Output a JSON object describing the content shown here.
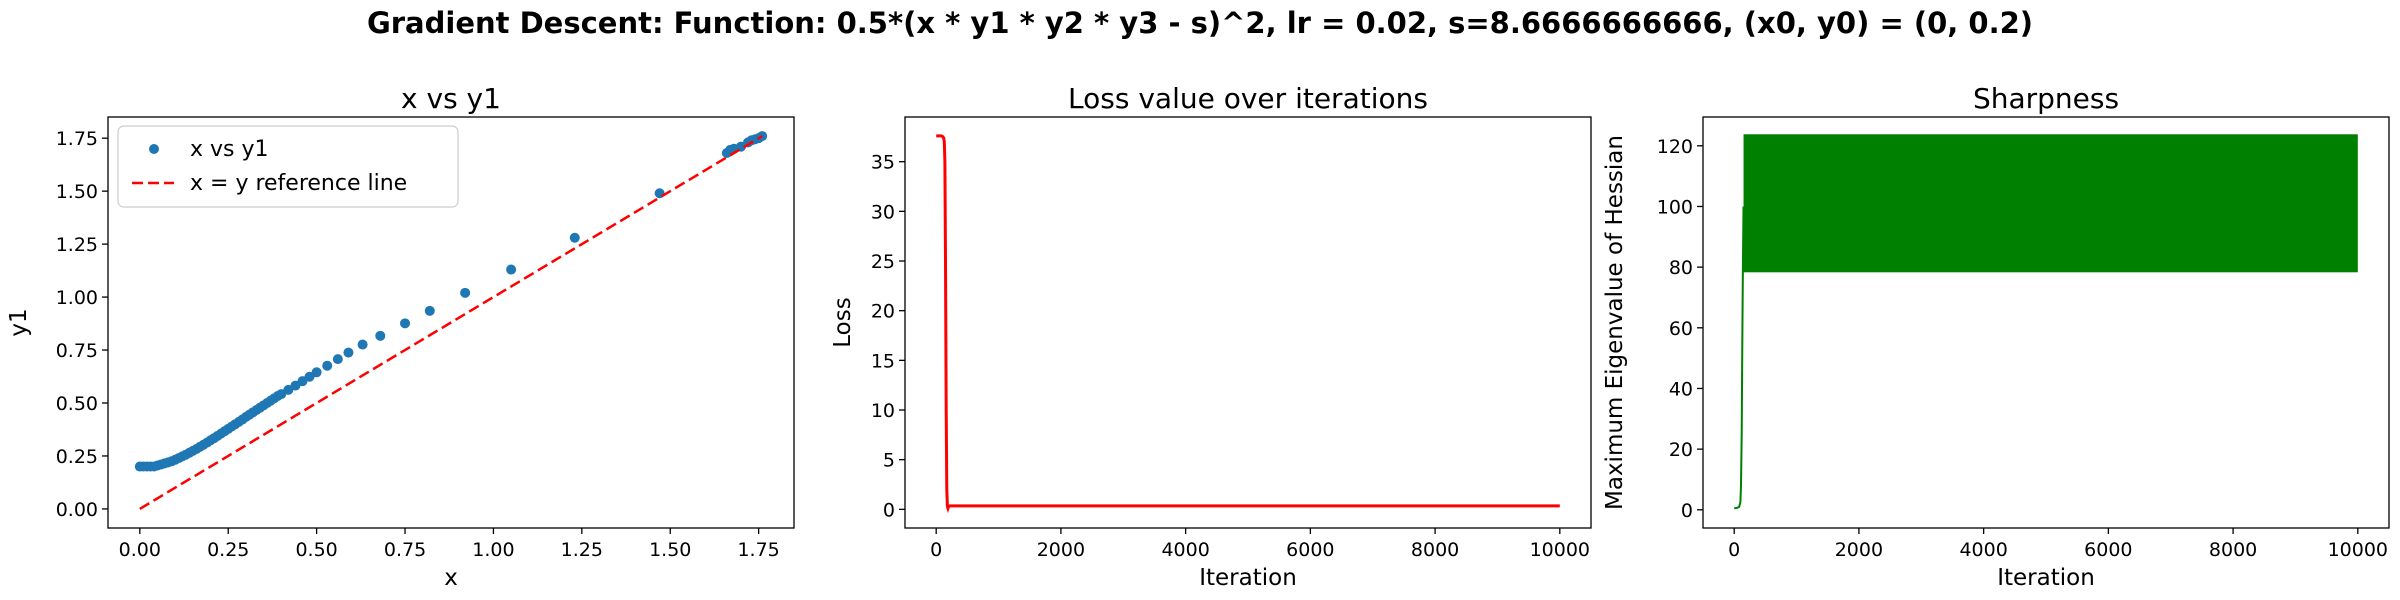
{
  "suptitle": "Gradient Descent: Function: 0.5*(x * y1 * y2 * y3 - s)^2, lr = 0.02, s=8.6666666666, (x0, y0) = (0, 0.2)",
  "colors": {
    "scatter": "#1f77b4",
    "reference": "#ff0000",
    "loss": "#ff0000",
    "sharpness": "#008000",
    "axes": "#000000"
  },
  "chart_data": [
    {
      "type": "scatter",
      "title": "x vs y1",
      "xlabel": "x",
      "ylabel": "y1",
      "xlim": [
        -0.09,
        1.85
      ],
      "ylim": [
        -0.09,
        1.85
      ],
      "xticks": [
        0.0,
        0.25,
        0.5,
        0.75,
        1.0,
        1.25,
        1.5,
        1.75
      ],
      "xtick_labels": [
        "0.00",
        "0.25",
        "0.50",
        "0.75",
        "1.00",
        "1.25",
        "1.50",
        "1.75"
      ],
      "yticks": [
        0.0,
        0.25,
        0.5,
        0.75,
        1.0,
        1.25,
        1.5,
        1.75
      ],
      "ytick_labels": [
        "0.00",
        "0.25",
        "0.50",
        "0.75",
        "1.00",
        "1.25",
        "1.50",
        "1.75"
      ],
      "legend": {
        "position": "top-left",
        "entries": [
          "x vs y1",
          "x = y reference line"
        ]
      },
      "series": [
        {
          "name": "x vs y1",
          "kind": "scatter",
          "x": [
            0.0,
            0.01,
            0.02,
            0.03,
            0.04,
            0.05,
            0.06,
            0.07,
            0.08,
            0.09,
            0.1,
            0.11,
            0.12,
            0.13,
            0.14,
            0.15,
            0.16,
            0.17,
            0.18,
            0.19,
            0.2,
            0.21,
            0.22,
            0.23,
            0.24,
            0.25,
            0.26,
            0.27,
            0.28,
            0.29,
            0.3,
            0.31,
            0.32,
            0.33,
            0.34,
            0.35,
            0.36,
            0.37,
            0.38,
            0.39,
            0.4,
            0.42,
            0.44,
            0.46,
            0.48,
            0.5,
            0.53,
            0.56,
            0.59,
            0.63,
            0.68,
            0.75,
            0.82,
            0.92,
            1.05,
            1.23,
            1.47,
            1.66,
            1.67,
            1.68,
            1.7,
            1.72,
            1.73,
            1.74,
            1.75,
            1.76
          ],
          "y": [
            0.2,
            0.2,
            0.2,
            0.2,
            0.2,
            0.205,
            0.21,
            0.215,
            0.22,
            0.225,
            0.232,
            0.24,
            0.248,
            0.256,
            0.265,
            0.274,
            0.283,
            0.293,
            0.303,
            0.313,
            0.324,
            0.334,
            0.345,
            0.356,
            0.367,
            0.378,
            0.389,
            0.4,
            0.411,
            0.422,
            0.434,
            0.445,
            0.456,
            0.467,
            0.478,
            0.489,
            0.5,
            0.511,
            0.522,
            0.533,
            0.542,
            0.562,
            0.582,
            0.603,
            0.624,
            0.645,
            0.676,
            0.707,
            0.738,
            0.776,
            0.817,
            0.876,
            0.935,
            1.02,
            1.13,
            1.28,
            1.49,
            1.68,
            1.695,
            1.7,
            1.71,
            1.73,
            1.74,
            1.745,
            1.75,
            1.76
          ]
        },
        {
          "name": "x = y reference line",
          "kind": "line",
          "style": "dashed",
          "x": [
            0.0,
            1.76
          ],
          "y": [
            0.0,
            1.76
          ]
        }
      ]
    },
    {
      "type": "line",
      "title": "Loss value over iterations",
      "xlabel": "Iteration",
      "ylabel": "Loss",
      "xlim": [
        -500,
        10500
      ],
      "ylim": [
        -1.88,
        39.5
      ],
      "xticks": [
        0,
        2000,
        4000,
        6000,
        8000,
        10000
      ],
      "xtick_labels": [
        "0",
        "2000",
        "4000",
        "6000",
        "8000",
        "10000"
      ],
      "yticks": [
        0,
        5,
        10,
        15,
        20,
        25,
        30,
        35
      ],
      "ytick_labels": [
        "0",
        "5",
        "10",
        "15",
        "20",
        "25",
        "30",
        "35"
      ],
      "series": [
        {
          "kind": "line",
          "x": [
            0,
            20,
            40,
            60,
            80,
            100,
            120,
            130,
            140,
            150,
            160,
            170,
            180,
            190,
            200,
            220,
            260,
            500,
            2000,
            4000,
            6000,
            8000,
            10000
          ],
          "y": [
            37.6,
            37.6,
            37.6,
            37.6,
            37.6,
            37.55,
            37.4,
            37.0,
            35.0,
            25.0,
            10.0,
            2.0,
            0.3,
            0.1,
            0.3,
            0.35,
            0.35,
            0.35,
            0.35,
            0.35,
            0.35,
            0.35,
            0.35
          ]
        }
      ]
    },
    {
      "type": "line",
      "title": "Sharpness",
      "xlabel": "Iteration",
      "ylabel": "Maximum Eigenvalue of Hessian",
      "xlim": [
        -500,
        10500
      ],
      "ylim": [
        -6.0,
        129.5
      ],
      "xticks": [
        0,
        2000,
        4000,
        6000,
        8000,
        10000
      ],
      "xtick_labels": [
        "0",
        "2000",
        "4000",
        "6000",
        "8000",
        "10000"
      ],
      "yticks": [
        0,
        20,
        40,
        60,
        80,
        100,
        120
      ],
      "ytick_labels": [
        "0",
        "20",
        "40",
        "60",
        "80",
        "100",
        "120"
      ],
      "series": [
        {
          "kind": "line",
          "x": [
            0,
            40,
            80,
            100,
            110,
            120,
            130,
            140,
            150
          ],
          "y": [
            0.5,
            0.6,
            1.0,
            2.5,
            8.0,
            25.0,
            55.0,
            80.0,
            100.0
          ]
        },
        {
          "kind": "oscillation-band",
          "x_start": 150,
          "x_end": 10000,
          "y_low": 78.3,
          "y_high": 123.8
        }
      ]
    }
  ]
}
